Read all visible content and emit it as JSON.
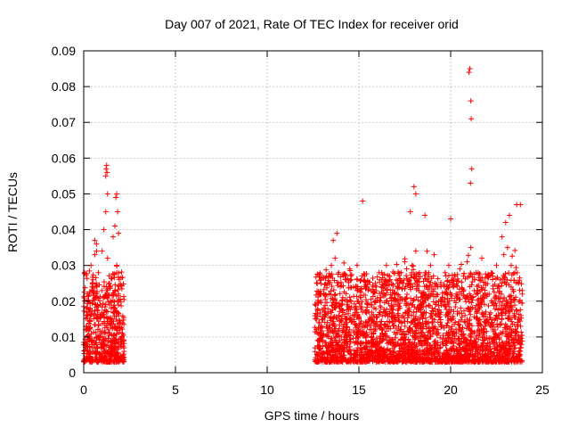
{
  "chart_data": {
    "type": "scatter",
    "title": "Day 007 of 2021, Rate Of TEC Index for receiver orid",
    "xlabel": "GPS time / hours",
    "ylabel": "ROTI / TECUs",
    "xlim": [
      0,
      25
    ],
    "ylim": [
      0,
      0.09
    ],
    "x_ticks": [
      0,
      5,
      10,
      15,
      20,
      25
    ],
    "y_ticks": [
      0,
      0.01,
      0.02,
      0.03,
      0.04,
      0.05,
      0.06,
      0.07,
      0.08,
      0.09
    ],
    "grid": true,
    "marker": "+",
    "color": "#ff0000",
    "coverage_segments": [
      {
        "x_start": 0.0,
        "x_end": 2.2
      },
      {
        "x_start": 12.6,
        "x_end": 23.9
      }
    ],
    "series": [
      {
        "x": [
          0.1,
          0.2,
          0.3,
          0.4,
          0.5,
          0.6,
          0.7,
          0.8,
          0.9,
          1.0,
          1.1,
          1.2,
          1.3,
          1.4,
          1.5,
          1.6,
          1.7,
          1.8,
          1.9,
          2.0,
          2.1,
          0.15,
          0.35,
          0.55,
          0.75,
          0.95,
          1.15,
          1.35,
          1.55,
          1.75,
          1.95,
          1.2,
          1.22,
          1.25,
          1.27,
          1.3,
          1.75,
          1.8,
          1.85,
          1.9,
          0.6,
          0.7,
          12.7,
          12.9,
          13.1,
          13.3,
          13.5,
          13.7,
          13.9,
          14.1,
          14.3,
          14.5,
          14.7,
          14.9,
          15.1,
          15.3,
          15.5,
          15.7,
          15.9,
          16.1,
          16.3,
          16.5,
          16.7,
          16.9,
          17.1,
          17.3,
          17.5,
          17.7,
          17.9,
          18.1,
          18.3,
          18.5,
          18.7,
          18.9,
          19.1,
          19.3,
          19.5,
          19.7,
          19.9,
          20.1,
          20.3,
          20.5,
          20.7,
          20.9,
          21.1,
          21.3,
          21.5,
          21.7,
          21.9,
          22.1,
          22.3,
          22.5,
          22.7,
          22.9,
          23.1,
          23.3,
          23.5,
          23.7,
          23.9,
          13.6,
          13.8,
          15.2,
          17.8,
          18.0,
          18.1,
          18.6,
          20.0,
          21.0,
          21.05,
          21.1,
          21.12,
          21.15,
          21.08,
          22.8,
          23.0,
          23.2,
          23.6,
          23.8
        ],
        "y": [
          0.012,
          0.016,
          0.022,
          0.03,
          0.026,
          0.033,
          0.036,
          0.028,
          0.019,
          0.034,
          0.04,
          0.045,
          0.032,
          0.025,
          0.018,
          0.038,
          0.041,
          0.03,
          0.022,
          0.014,
          0.011,
          0.008,
          0.01,
          0.009,
          0.007,
          0.011,
          0.006,
          0.012,
          0.005,
          0.009,
          0.004,
          0.055,
          0.057,
          0.058,
          0.056,
          0.05,
          0.049,
          0.05,
          0.045,
          0.039,
          0.037,
          0.034,
          0.015,
          0.022,
          0.018,
          0.025,
          0.03,
          0.032,
          0.028,
          0.02,
          0.026,
          0.029,
          0.024,
          0.03,
          0.021,
          0.027,
          0.023,
          0.019,
          0.025,
          0.028,
          0.022,
          0.03,
          0.026,
          0.02,
          0.024,
          0.028,
          0.031,
          0.025,
          0.03,
          0.034,
          0.028,
          0.022,
          0.026,
          0.03,
          0.033,
          0.024,
          0.02,
          0.028,
          0.03,
          0.025,
          0.022,
          0.029,
          0.027,
          0.031,
          0.035,
          0.026,
          0.028,
          0.032,
          0.025,
          0.022,
          0.027,
          0.03,
          0.026,
          0.033,
          0.035,
          0.03,
          0.028,
          0.025,
          0.022,
          0.037,
          0.039,
          0.048,
          0.045,
          0.052,
          0.05,
          0.044,
          0.043,
          0.084,
          0.085,
          0.076,
          0.071,
          0.057,
          0.053,
          0.038,
          0.042,
          0.044,
          0.047,
          0.047
        ]
      }
    ]
  }
}
